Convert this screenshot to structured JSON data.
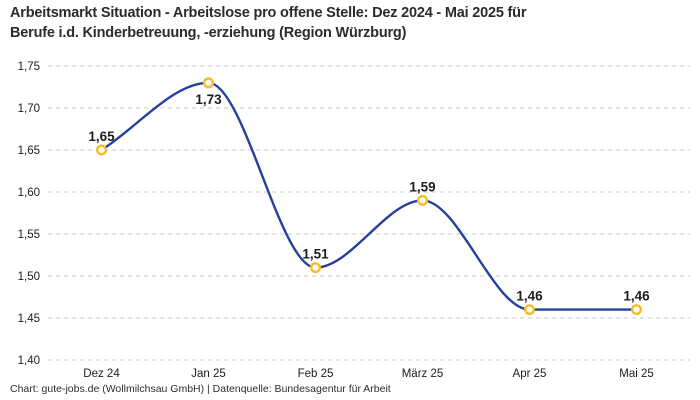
{
  "header": {
    "title_line1": "Arbeitsmarkt Situation - Arbeitslose pro offene Stelle: Dez 2024 - Mai 2025 für",
    "title_line2": "Berufe i.d. Kinderbetreuung, -erziehung (Region Würzburg)"
  },
  "chart_data": {
    "type": "line",
    "title": "Arbeitsmarkt Situation - Arbeitslose pro offene Stelle: Dez 2024 - Mai 2025 für Berufe i.d. Kinderbetreuung, -erziehung (Region Würzburg)",
    "categories": [
      "Dez 24",
      "Jan 25",
      "Feb 25",
      "März 25",
      "Apr 25",
      "Mai 25"
    ],
    "values": [
      1.65,
      1.73,
      1.51,
      1.59,
      1.46,
      1.46
    ],
    "value_labels": [
      "1,65",
      "1,73",
      "1,51",
      "1,59",
      "1,46",
      "1,46"
    ],
    "label_positions": [
      "above",
      "below",
      "above",
      "above",
      "above",
      "above"
    ],
    "xlabel": "",
    "ylabel": "",
    "ylim": [
      1.4,
      1.75
    ],
    "yticks": [
      1.4,
      1.45,
      1.5,
      1.55,
      1.6,
      1.65,
      1.7,
      1.75
    ],
    "ytick_labels": [
      "1,40",
      "1,45",
      "1,50",
      "1,55",
      "1,60",
      "1,65",
      "1,70",
      "1,75"
    ],
    "grid": "horizontal-dashed",
    "legend_position": "none",
    "curve": "smooth-monotone",
    "colors": {
      "line": "#27409B",
      "marker_stroke": "#F9BC27",
      "marker_fill": "#FFFFFF",
      "gridline": "#C9C9C9",
      "tick_text": "#1C1C1C",
      "label_text": "#1D1D1D",
      "title_text": "#2B2B2B"
    }
  },
  "footer": {
    "text": "Chart: gute-jobs.de (Wollmilchsau GmbH) | Datenquelle: Bundesagentur für Arbeit"
  }
}
